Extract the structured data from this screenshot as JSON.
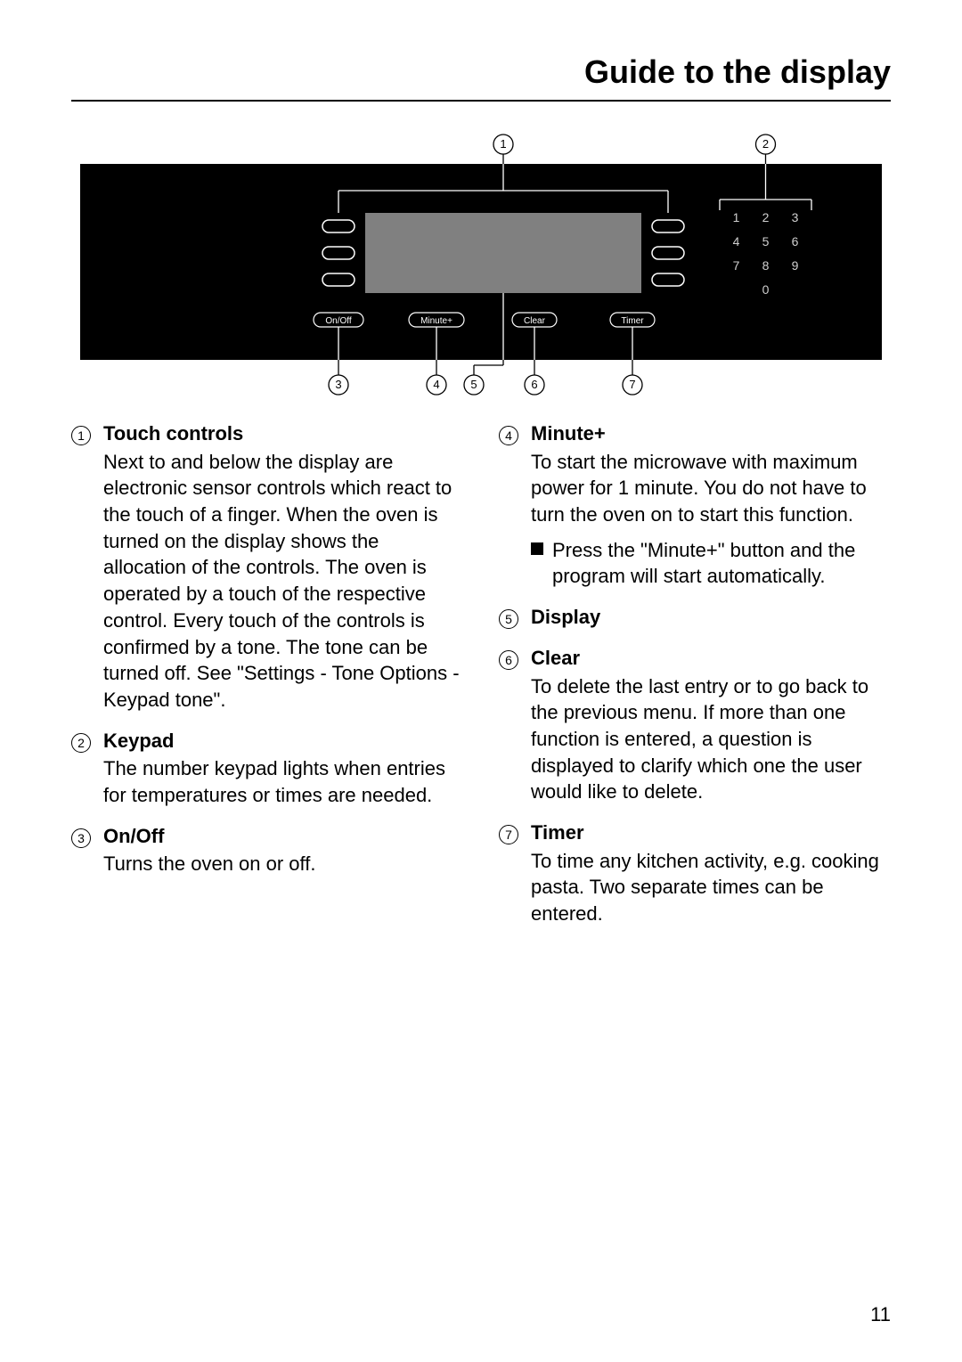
{
  "title": "Guide to the display",
  "page_number": "11",
  "diagram": {
    "panel_bg": "#000000",
    "screen_bg": "#808080",
    "keypad_digit_color": "#cfcfcf",
    "line_color": "#ffffff",
    "callout_line_color": "#000000",
    "callout_circle_stroke": "#000000",
    "callouts_top": [
      "1",
      "2"
    ],
    "callouts_bottom": [
      "3",
      "4",
      "5",
      "6",
      "7"
    ],
    "buttons": [
      "On/Off",
      "Minute+",
      "Clear",
      "Timer"
    ],
    "keypad_digits": [
      "1",
      "2",
      "3",
      "4",
      "5",
      "6",
      "7",
      "8",
      "9",
      "0"
    ]
  },
  "left_items": [
    {
      "num": "1",
      "title": "Touch controls",
      "desc": "Next to and below the display are electronic sensor controls which react to the touch of a finger. When the oven is turned on the display shows the allocation of the controls. The oven is operated by a touch of the respective control. Every touch of the controls is confirmed by a tone. The tone can be turned off.\nSee \"Settings - Tone Options - Keypad tone\"."
    },
    {
      "num": "2",
      "title": "Keypad",
      "desc": "The number keypad lights when entries for temperatures or times are needed."
    },
    {
      "num": "3",
      "title": "On/Off",
      "desc": "Turns the oven on or off."
    }
  ],
  "right_items": [
    {
      "num": "4",
      "title": "Minute+",
      "desc": "To start the microwave with maximum power for 1 minute. You do not have to turn the oven on to start this function.",
      "bullet": "Press the \"Minute+\" button and the program will start automatically."
    },
    {
      "num": "5",
      "title": "Display",
      "desc": ""
    },
    {
      "num": "6",
      "title": "Clear",
      "desc": "To delete the last entry or to go back to the previous menu. If more than one function is entered, a question is displayed to clarify which one the user would like to delete."
    },
    {
      "num": "7",
      "title": "Timer",
      "desc": "To time any kitchen activity, e.g. cooking pasta. Two separate times can be entered."
    }
  ]
}
